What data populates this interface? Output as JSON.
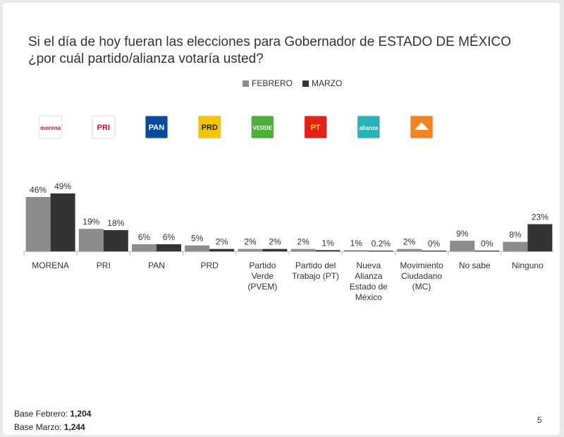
{
  "title": "Si el día de hoy fueran las elecciones para Gobernador de ESTADO DE MÉXICO ¿por cuál partido/alianza votaría usted?",
  "footer": {
    "base_febrero_label": "Base Febrero:",
    "base_febrero_value": "1,204",
    "base_marzo_label": "Base Marzo:",
    "base_marzo_value": "1,244",
    "page_number": "5"
  },
  "logos": [
    {
      "icon": "morena-logo",
      "text": "morena",
      "bg": "#ffffff",
      "fg": "#b5122d"
    },
    {
      "icon": "pri-logo",
      "text": "PRI",
      "bg": "#ffffff",
      "fg": "#c8102e"
    },
    {
      "icon": "pan-logo",
      "text": "PAN",
      "bg": "#0a4a9c",
      "fg": "#ffffff"
    },
    {
      "icon": "prd-logo",
      "text": "PRD",
      "bg": "#f5c400",
      "fg": "#222222"
    },
    {
      "icon": "verde-logo",
      "text": "VERDE",
      "bg": "#4caf3a",
      "fg": "#ffffff"
    },
    {
      "icon": "pt-logo",
      "text": "PT",
      "bg": "#e2231a",
      "fg": "#ffd400"
    },
    {
      "icon": "nueva-alianza-logo",
      "text": "alianza",
      "bg": "#26b3b3",
      "fg": "#ffffff"
    },
    {
      "icon": "movimiento-ciudadano-logo",
      "text": "",
      "bg": "#f58220",
      "fg": "#ffffff"
    }
  ],
  "chart_data": {
    "type": "bar",
    "categories": [
      [
        "MORENA"
      ],
      [
        "PRI"
      ],
      [
        "PAN"
      ],
      [
        "PRD"
      ],
      [
        "Partido",
        "Verde",
        "(PVEM)"
      ],
      [
        "Partido del",
        "Trabajo (PT)"
      ],
      [
        "Nueva",
        "Alianza",
        "Estado de",
        "México"
      ],
      [
        "Movimiento",
        "Ciudadano",
        "(MC)"
      ],
      [
        "No sabe"
      ],
      [
        "Ninguno"
      ]
    ],
    "series": [
      {
        "name": "FEBRERO",
        "color": "#8c8c8c",
        "values": [
          46,
          19,
          6,
          5,
          2,
          2,
          1,
          2,
          9,
          8
        ],
        "labels": [
          "46%",
          "19%",
          "6%",
          "5%",
          "2%",
          "2%",
          "1%",
          "2%",
          "9%",
          "8%"
        ]
      },
      {
        "name": "MARZO",
        "color": "#333333",
        "values": [
          49,
          18,
          6,
          2,
          2,
          1,
          0.2,
          0,
          0,
          23
        ],
        "labels": [
          "49%",
          "18%",
          "6%",
          "2%",
          "2%",
          "1%",
          "0.2%",
          "0%",
          "0%",
          "23%"
        ]
      }
    ],
    "ylim": [
      0,
      49
    ],
    "legend_position": "top-center",
    "grid": false
  }
}
